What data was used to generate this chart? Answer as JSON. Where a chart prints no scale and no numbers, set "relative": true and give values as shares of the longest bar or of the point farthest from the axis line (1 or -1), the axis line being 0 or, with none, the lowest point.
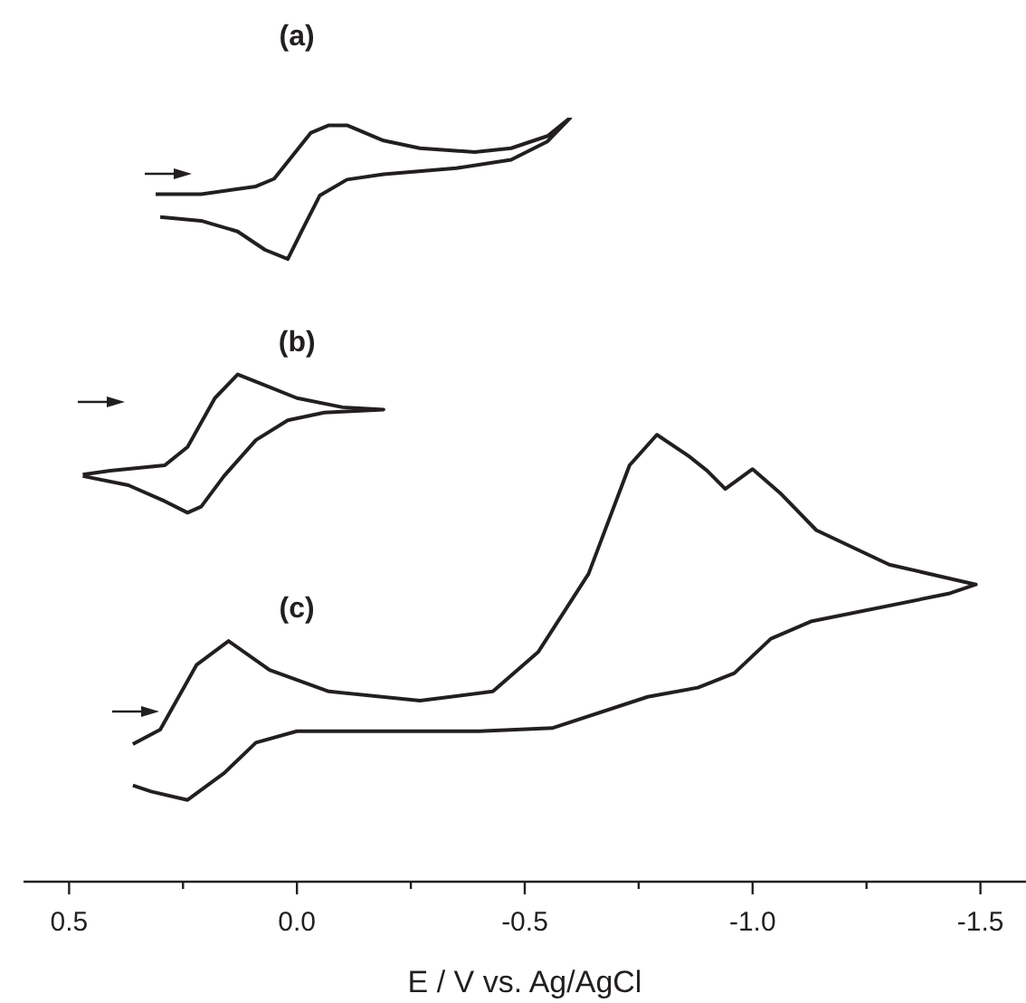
{
  "chart_data": {
    "type": "line",
    "relative": true,
    "xlabel": "E / V vs. Ag/AgCl",
    "xlim": [
      0.6,
      -1.6
    ],
    "xticks": [
      0.5,
      {
        "value": 0.25,
        "label": null
      },
      {
        "value": 0,
        "label": "0.0"
      },
      {
        "value": -0.25,
        "label": null
      },
      -0.5,
      {
        "value": -0.75,
        "label": null
      },
      {
        "value": -1,
        "label": "-1.0"
      },
      {
        "value": -1.25,
        "label": null
      },
      -1.5
    ],
    "marker": "none",
    "line_style": "solid",
    "tick_labels": "x",
    "series": [
      {
        "name": "(a)",
        "color": "#231f20",
        "x": [
          0.31,
          0.21,
          0.09,
          0.05,
          0.01,
          -0.03,
          -0.07,
          -0.11,
          -0.19,
          -0.27,
          -0.39,
          -0.47,
          -0.55,
          -0.6,
          -0.55,
          -0.47,
          -0.35,
          -0.19,
          -0.11,
          -0.05,
          -0.01,
          0.02,
          0.07,
          0.13,
          0.21,
          0.3
        ],
        "values": [
          0.9,
          0.9,
          0.91,
          0.92,
          0.95,
          0.98,
          0.99,
          0.99,
          0.97,
          0.96,
          0.955,
          0.96,
          0.976,
          1.0,
          0.969,
          0.945,
          0.934,
          0.926,
          0.919,
          0.898,
          0.851,
          0.815,
          0.827,
          0.851,
          0.865,
          0.87
        ]
      },
      {
        "name": "(b)",
        "color": "#231f20",
        "x": [
          0.47,
          0.41,
          0.29,
          0.24,
          0.18,
          0.13,
          0.08,
          0.0,
          -0.1,
          -0.19,
          -0.06,
          0.02,
          0.09,
          0.16,
          0.21,
          0.24,
          0.29,
          0.37,
          0.47
        ],
        "values": [
          0.533,
          0.538,
          0.545,
          0.569,
          0.633,
          0.664,
          0.652,
          0.633,
          0.621,
          0.618,
          0.614,
          0.604,
          0.578,
          0.531,
          0.491,
          0.483,
          0.498,
          0.519,
          0.531
        ]
      },
      {
        "name": "(c)",
        "color": "#231f20",
        "x": [
          0.36,
          0.3,
          0.22,
          0.15,
          0.06,
          -0.07,
          -0.27,
          -0.43,
          -0.53,
          -0.64,
          -0.73,
          -0.79,
          -0.86,
          -0.9,
          -0.94,
          -1.0,
          -1.06,
          -1.14,
          -1.3,
          -1.49,
          -1.43,
          -1.13,
          -1.04,
          -0.96,
          -0.88,
          -0.77,
          -0.56,
          -0.4,
          0.0,
          0.09,
          0.16,
          0.24,
          0.32,
          0.36
        ],
        "values": [
          0.18,
          0.199,
          0.284,
          0.315,
          0.277,
          0.249,
          0.237,
          0.249,
          0.301,
          0.403,
          0.545,
          0.585,
          0.557,
          0.538,
          0.514,
          0.54,
          0.509,
          0.46,
          0.415,
          0.389,
          0.377,
          0.341,
          0.318,
          0.273,
          0.254,
          0.242,
          0.201,
          0.197,
          0.197,
          0.182,
          0.142,
          0.107,
          0.118,
          0.126
        ]
      }
    ]
  }
}
